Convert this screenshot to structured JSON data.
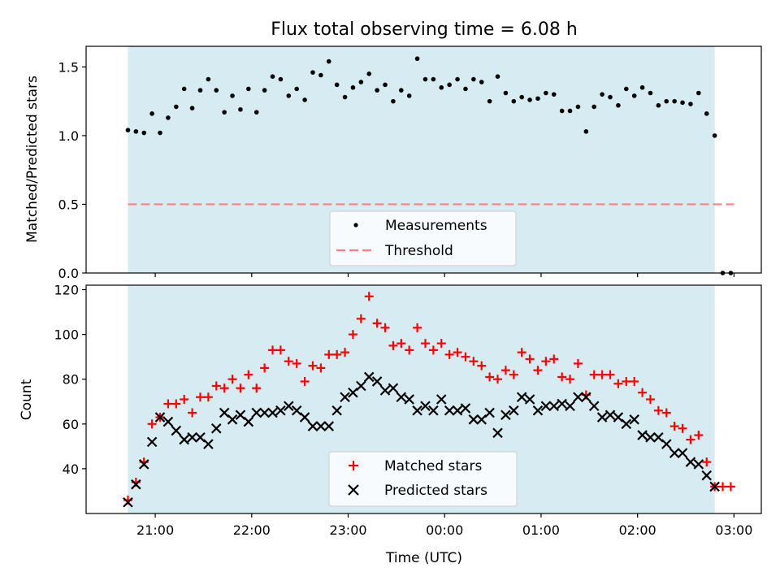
{
  "chart_data": [
    {
      "type": "scatter",
      "title": "Flux total observing time = 6.08 h",
      "xlabel": "",
      "ylabel": "Matched/Predicted stars",
      "xlim": [
        "20:17",
        "03:17"
      ],
      "ylim": [
        0,
        1.65
      ],
      "yticks": [
        "0.0",
        "0.5",
        "1.0",
        "1.5"
      ],
      "observing_window": [
        "20:43",
        "02:48"
      ],
      "threshold": {
        "name": "Threshold",
        "value": 0.5,
        "x_range": [
          "20:43",
          "03:00"
        ],
        "color": "#ff7f7f"
      },
      "legend": {
        "placement": "lower-center",
        "entries": [
          "Measurements",
          "Threshold"
        ]
      },
      "series": [
        {
          "name": "Measurements",
          "color": "#000000",
          "x": [
            "20:43",
            "20:48",
            "20:53",
            "20:58",
            "21:03",
            "21:08",
            "21:13",
            "21:18",
            "21:23",
            "21:28",
            "21:33",
            "21:38",
            "21:43",
            "21:48",
            "21:53",
            "21:58",
            "22:03",
            "22:08",
            "22:13",
            "22:18",
            "22:23",
            "22:28",
            "22:33",
            "22:38",
            "22:43",
            "22:48",
            "22:53",
            "22:58",
            "23:03",
            "23:08",
            "23:13",
            "23:18",
            "23:23",
            "23:28",
            "23:33",
            "23:38",
            "23:43",
            "23:48",
            "23:53",
            "23:58",
            "00:03",
            "00:08",
            "00:13",
            "00:18",
            "00:23",
            "00:28",
            "00:33",
            "00:38",
            "00:43",
            "00:48",
            "00:53",
            "00:58",
            "01:03",
            "01:08",
            "01:13",
            "01:18",
            "01:23",
            "01:28",
            "01:33",
            "01:38",
            "01:43",
            "01:48",
            "01:53",
            "01:58",
            "02:03",
            "02:08",
            "02:13",
            "02:18",
            "02:23",
            "02:28",
            "02:33",
            "02:38",
            "02:43",
            "02:48",
            "02:53",
            "02:58"
          ],
          "y": [
            1.04,
            1.03,
            1.02,
            1.16,
            1.02,
            1.13,
            1.21,
            1.34,
            1.2,
            1.33,
            1.41,
            1.33,
            1.17,
            1.29,
            1.19,
            1.34,
            1.17,
            1.33,
            1.43,
            1.41,
            1.29,
            1.34,
            1.26,
            1.46,
            1.44,
            1.54,
            1.37,
            1.28,
            1.35,
            1.39,
            1.45,
            1.33,
            1.37,
            1.25,
            1.33,
            1.29,
            1.56,
            1.41,
            1.41,
            1.35,
            1.37,
            1.41,
            1.34,
            1.41,
            1.39,
            1.25,
            1.43,
            1.31,
            1.25,
            1.28,
            1.26,
            1.27,
            1.31,
            1.3,
            1.18,
            1.18,
            1.21,
            1.03,
            1.21,
            1.3,
            1.28,
            1.22,
            1.34,
            1.29,
            1.35,
            1.31,
            1.22,
            1.25,
            1.25,
            1.24,
            1.23,
            1.31,
            1.16,
            1.0,
            0.0,
            0.0
          ]
        }
      ]
    },
    {
      "type": "scatter",
      "title": "",
      "xlabel": "Time (UTC)",
      "ylabel": "Count",
      "xlim": [
        "20:17",
        "03:17"
      ],
      "ylim": [
        20,
        122
      ],
      "yticks": [
        "40",
        "60",
        "80",
        "100",
        "120"
      ],
      "xticks": [
        "21:00",
        "22:00",
        "23:00",
        "00:00",
        "01:00",
        "02:00",
        "03:00"
      ],
      "observing_window": [
        "20:43",
        "02:48"
      ],
      "legend": {
        "placement": "lower-center",
        "entries": [
          "Matched stars",
          "Predicted stars"
        ]
      },
      "series": [
        {
          "name": "Matched stars",
          "color": "#ff0000",
          "x": [
            "20:43",
            "20:48",
            "20:53",
            "20:58",
            "21:03",
            "21:08",
            "21:13",
            "21:18",
            "21:23",
            "21:28",
            "21:33",
            "21:38",
            "21:43",
            "21:48",
            "21:53",
            "21:58",
            "22:03",
            "22:08",
            "22:13",
            "22:18",
            "22:23",
            "22:28",
            "22:33",
            "22:38",
            "22:43",
            "22:48",
            "22:53",
            "22:58",
            "23:03",
            "23:08",
            "23:13",
            "23:18",
            "23:23",
            "23:28",
            "23:33",
            "23:38",
            "23:43",
            "23:48",
            "23:53",
            "23:58",
            "00:03",
            "00:08",
            "00:13",
            "00:18",
            "00:23",
            "00:28",
            "00:33",
            "00:38",
            "00:43",
            "00:48",
            "00:53",
            "00:58",
            "01:03",
            "01:08",
            "01:13",
            "01:18",
            "01:23",
            "01:28",
            "01:33",
            "01:38",
            "01:43",
            "01:48",
            "01:53",
            "01:58",
            "02:03",
            "02:08",
            "02:13",
            "02:18",
            "02:23",
            "02:28",
            "02:33",
            "02:38",
            "02:43",
            "02:48",
            "02:53",
            "02:58"
          ],
          "y": [
            26,
            34,
            43,
            60,
            63,
            69,
            69,
            71,
            65,
            72,
            72,
            77,
            76,
            80,
            76,
            82,
            76,
            85,
            93,
            93,
            88,
            87,
            79,
            86,
            85,
            91,
            91,
            92,
            100,
            107,
            117,
            105,
            103,
            95,
            96,
            93,
            103,
            96,
            93,
            96,
            91,
            92,
            90,
            88,
            86,
            81,
            80,
            84,
            82,
            92,
            89,
            84,
            88,
            89,
            81,
            80,
            87,
            73,
            82,
            82,
            82,
            78,
            79,
            79,
            74,
            71,
            66,
            65,
            59,
            58,
            53,
            55,
            43,
            32,
            32,
            32
          ]
        },
        {
          "name": "Predicted stars",
          "color": "#000000",
          "x": [
            "20:43",
            "20:48",
            "20:53",
            "20:58",
            "21:03",
            "21:08",
            "21:13",
            "21:18",
            "21:23",
            "21:28",
            "21:33",
            "21:38",
            "21:43",
            "21:48",
            "21:53",
            "21:58",
            "22:03",
            "22:08",
            "22:13",
            "22:18",
            "22:23",
            "22:28",
            "22:33",
            "22:38",
            "22:43",
            "22:48",
            "22:53",
            "22:58",
            "23:03",
            "23:08",
            "23:13",
            "23:18",
            "23:23",
            "23:28",
            "23:33",
            "23:38",
            "23:43",
            "23:48",
            "23:53",
            "23:58",
            "00:03",
            "00:08",
            "00:13",
            "00:18",
            "00:23",
            "00:28",
            "00:33",
            "00:38",
            "00:43",
            "00:48",
            "00:53",
            "00:58",
            "01:03",
            "01:08",
            "01:13",
            "01:18",
            "01:23",
            "01:28",
            "01:33",
            "01:38",
            "01:43",
            "01:48",
            "01:53",
            "01:58",
            "02:03",
            "02:08",
            "02:13",
            "02:18",
            "02:23",
            "02:28",
            "02:33",
            "02:38",
            "02:43",
            "02:48"
          ],
          "y": [
            25,
            33,
            42,
            52,
            63,
            61,
            57,
            53,
            54,
            54,
            51,
            58,
            65,
            62,
            64,
            61,
            65,
            65,
            65,
            66,
            68,
            66,
            63,
            59,
            59,
            59,
            66,
            72,
            74,
            77,
            81,
            79,
            75,
            76,
            72,
            71,
            66,
            68,
            66,
            71,
            66,
            66,
            67,
            62,
            62,
            65,
            56,
            64,
            66,
            72,
            71,
            66,
            68,
            68,
            69,
            68,
            72,
            72,
            68,
            63,
            64,
            63,
            60,
            62,
            55,
            54,
            54,
            51,
            47,
            47,
            43,
            42,
            37,
            32
          ]
        }
      ]
    }
  ]
}
